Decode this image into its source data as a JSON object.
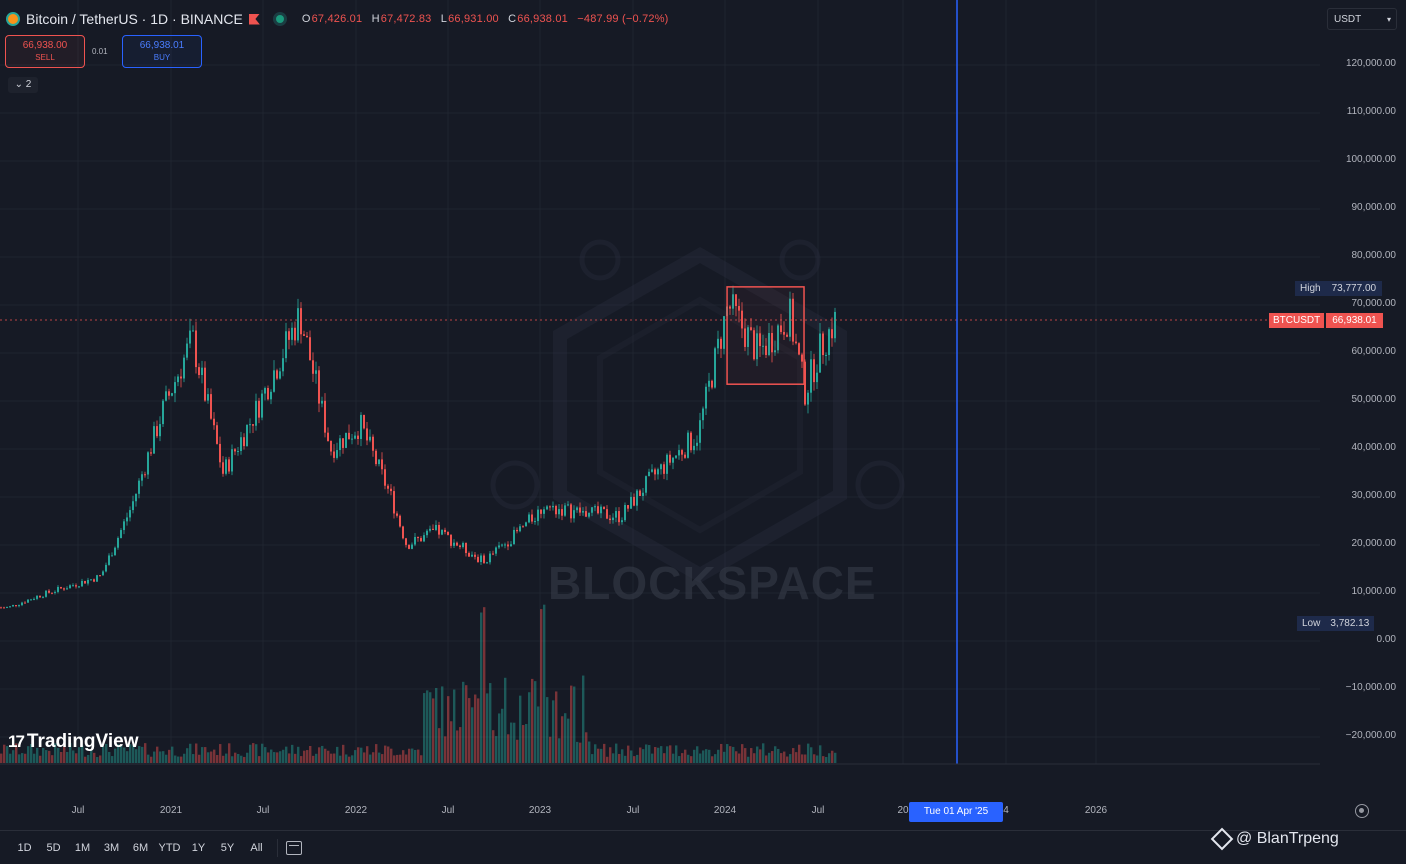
{
  "header": {
    "title": "Bitcoin / TetherUS · 1D · BINANCE",
    "ohlc": {
      "o_label": "O",
      "o": "67,426.01",
      "h_label": "H",
      "h": "67,472.83",
      "l_label": "L",
      "l": "66,931.00",
      "c_label": "C",
      "c": "66,938.01",
      "change": "−487.99 (−0.72%)"
    }
  },
  "trade": {
    "sell_price": "66,938.00",
    "sell_label": "SELL",
    "spread": "0.01",
    "buy_price": "66,938.01",
    "buy_label": "BUY"
  },
  "indicators_toggle": "2",
  "currency_select": "USDT",
  "price_axis": {
    "labels": [
      "120,000.00",
      "110,000.00",
      "100,000.00",
      "90,000.00",
      "80,000.00",
      "70,000.00",
      "60,000.00",
      "50,000.00",
      "40,000.00",
      "30,000.00",
      "20,000.00",
      "10,000.00",
      "0.00",
      "−10,000.00",
      "−20,000.00"
    ],
    "high_label": "High",
    "high_value": "73,777.00",
    "last_label": "BTCUSDT",
    "last_value": "66,938.01",
    "low_label": "Low",
    "low_value": "3,782.13"
  },
  "time_axis": {
    "labels": [
      "Jul",
      "2021",
      "Jul",
      "2022",
      "Jul",
      "2023",
      "Jul",
      "2024",
      "Jul",
      "20",
      "4",
      "2026"
    ],
    "crosshair_date": "Tue 01 Apr '25"
  },
  "watermark_text": "BLOCKSPACE",
  "brand": {
    "name": "TradingView",
    "mark": "17"
  },
  "range_buttons": [
    "1D",
    "5D",
    "1M",
    "3M",
    "6M",
    "YTD",
    "1Y",
    "5Y",
    "All"
  ],
  "credit": "@ BlanTrpeng",
  "colors": {
    "up": "#26a69a",
    "down": "#ef5350",
    "crosshair": "#2962ff",
    "bg": "#161a25"
  },
  "chart_data": {
    "type": "line",
    "title": "",
    "x": [
      "2020-04",
      "2020-06",
      "2020-08",
      "2020-10",
      "2020-12",
      "2021-02",
      "2021-04",
      "2021-06",
      "2021-08",
      "2021-11",
      "2022-01",
      "2022-03",
      "2022-05",
      "2022-06",
      "2022-08",
      "2022-11",
      "2023-01",
      "2023-03",
      "2023-05",
      "2023-08",
      "2023-10",
      "2024-01",
      "2024-03",
      "2024-05",
      "2024-07",
      "2024-08",
      "2024-09",
      "2024-10"
    ],
    "series": [
      {
        "values": [
          7000,
          9500,
          11500,
          13500,
          28000,
          48000,
          63000,
          35000,
          47000,
          68000,
          40000,
          45000,
          30000,
          20000,
          23000,
          16500,
          22000,
          28000,
          27000,
          26000,
          34000,
          43000,
          70000,
          60000,
          68000,
          52000,
          61000,
          67000
        ]
      }
    ],
    "ylim": [
      -25000,
      125000
    ],
    "high": 73777.0,
    "low": 3782.13,
    "last": 66938.01,
    "highlight_range": {
      "x": [
        "2024-03",
        "2024-08"
      ],
      "y": [
        53500,
        73777
      ]
    },
    "volume_spikes": [
      "2022-11",
      "2023-03"
    ]
  }
}
